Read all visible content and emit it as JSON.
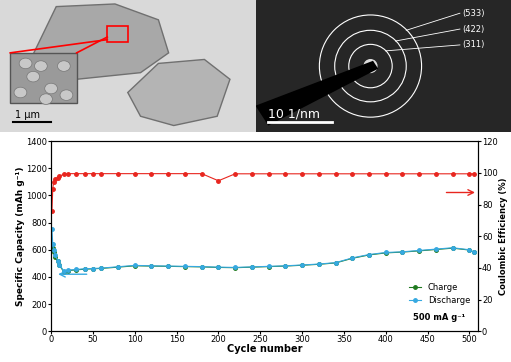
{
  "sem_image": {
    "scale_bar": "1 μm"
  },
  "diffraction_pattern": {
    "scale_bar": "10 1/nm",
    "ring_labels": [
      "(533)",
      "(422)",
      "(311)"
    ]
  },
  "chart_data": {
    "type": "line",
    "x_label": "Cycle number",
    "y_label": "Specific Capacity (mAh g⁻¹)",
    "y2_label": "Coulombic Efficiency (%)",
    "annotation": "500 mA g⁻¹",
    "x": [
      1,
      2,
      3,
      5,
      8,
      10,
      15,
      20,
      30,
      40,
      50,
      60,
      80,
      100,
      120,
      140,
      160,
      180,
      200,
      220,
      240,
      260,
      280,
      300,
      320,
      340,
      360,
      380,
      400,
      420,
      440,
      460,
      480,
      500,
      505
    ],
    "xlim": [
      0,
      510
    ],
    "xticks": [
      0,
      50,
      100,
      150,
      200,
      250,
      300,
      350,
      400,
      450,
      500
    ],
    "ylim": [
      0,
      1400
    ],
    "yticks": [
      0,
      200,
      400,
      600,
      800,
      1000,
      1200,
      1400
    ],
    "y2lim": [
      0,
      120
    ],
    "y2ticks": [
      0,
      20,
      40,
      60,
      80,
      100,
      120
    ],
    "legend": "lower right",
    "series": [
      {
        "name": "Charge",
        "color": "#1f7a1f",
        "marker": "o",
        "line_style": "solid",
        "values": [
          640,
          610,
          585,
          550,
          515,
          485,
          440,
          447,
          452,
          457,
          460,
          463,
          472,
          482,
          480,
          478,
          476,
          474,
          470,
          468,
          472,
          476,
          480,
          486,
          493,
          503,
          537,
          562,
          577,
          583,
          592,
          602,
          612,
          598,
          583
        ]
      },
      {
        "name": "Discharge",
        "color": "#36a9e1",
        "marker": "o",
        "line_style": "solid",
        "values": [
          750,
          640,
          600,
          560,
          520,
          490,
          445,
          450,
          455,
          460,
          462,
          465,
          475,
          485,
          482,
          480,
          478,
          476,
          472,
          470,
          474,
          478,
          482,
          488,
          495,
          505,
          540,
          565,
          580,
          585,
          595,
          605,
          615,
          600,
          585
        ]
      },
      {
        "axis": "y2",
        "color": "#e8261f",
        "marker": "o",
        "line_style": "solid",
        "values": [
          76,
          90,
          94,
          96,
          97,
          98,
          99,
          99.5,
          99.5,
          99.5,
          99.5,
          99.5,
          99.5,
          99.5,
          99.5,
          99.5,
          99.5,
          99.5,
          95,
          99.4,
          99.4,
          99.4,
          99.4,
          99.4,
          99.4,
          99.4,
          99.4,
          99.4,
          99.4,
          99.4,
          99.4,
          99.4,
          99.4,
          99.4,
          99.4
        ]
      }
    ]
  }
}
